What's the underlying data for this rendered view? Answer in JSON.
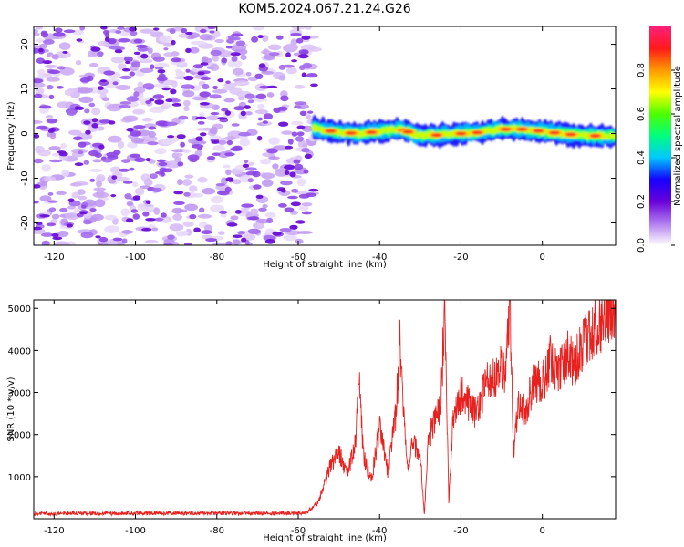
{
  "figure": {
    "title": "KOM5.2024.067.21.24.G26"
  },
  "chart_data": [
    {
      "type": "heatmap",
      "title": "KOM5.2024.067.21.24.G26",
      "xlabel": "Height of straight line (km)",
      "ylabel": "Frequency (Hz)",
      "xlim": [
        -125,
        18
      ],
      "ylim": [
        -25,
        24
      ],
      "xticks": [
        -120,
        -100,
        -80,
        -60,
        -40,
        -20,
        0
      ],
      "yticks": [
        -20,
        -10,
        0,
        10,
        20
      ],
      "colorbar": {
        "label": "Normalized spectral amplitude",
        "range": [
          0,
          1
        ],
        "ticks": [
          0.0,
          0.2,
          0.4,
          0.6,
          0.8
        ],
        "colormap": [
          "#ffffff",
          "#b07cf0",
          "#6a00d8",
          "#1400ff",
          "#00c8ff",
          "#00ff7f",
          "#4dff00",
          "#ffff00",
          "#ff9900",
          "#ff1a1a",
          "#ff1f7a"
        ]
      },
      "regions": [
        {
          "name": "noise",
          "x_range": [
            -125,
            -56
          ],
          "amplitude_range": [
            0.0,
            0.2
          ]
        },
        {
          "name": "signal",
          "x_range": [
            -56,
            18
          ],
          "frequency_hz": 0,
          "bandwidth_hz": 3,
          "peak_amplitude": 1.0
        }
      ],
      "signal_track": {
        "x": [
          -58,
          -55,
          -50,
          -45,
          -40,
          -35,
          -30,
          -25,
          -20,
          -15,
          -10,
          -5,
          0,
          5,
          10,
          15,
          18
        ],
        "y": [
          1.5,
          1.0,
          0.3,
          0.0,
          0.5,
          1.0,
          -0.5,
          -0.3,
          0.0,
          0.3,
          1.0,
          1.0,
          0.5,
          0.0,
          -0.5,
          -0.5,
          -0.5
        ]
      },
      "grid": false
    },
    {
      "type": "line",
      "title": "",
      "xlabel": "Height of straight line (km)",
      "ylabel": "SNR (10 * v/v)",
      "xlim": [
        -125,
        18
      ],
      "ylim": [
        0,
        5200
      ],
      "xticks": [
        -120,
        -100,
        -80,
        -60,
        -40,
        -20,
        0
      ],
      "yticks": [
        1000,
        2000,
        3000,
        4000,
        5000
      ],
      "series": [
        {
          "color": "#e8201e",
          "x": [
            -125,
            -115,
            -105,
            -95,
            -85,
            -75,
            -65,
            -58,
            -55,
            -54,
            -52,
            -50,
            -48,
            -46,
            -45,
            -44,
            -42,
            -40,
            -38,
            -36,
            -35,
            -33,
            -32,
            -30,
            -29,
            -28,
            -26,
            -25,
            -24,
            -23,
            -22,
            -20,
            -18,
            -16,
            -14,
            -12,
            -10,
            -9,
            -8,
            -7,
            -6,
            -4,
            -2,
            0,
            2,
            4,
            6,
            8,
            10,
            12,
            14,
            16,
            18
          ],
          "y": [
            120,
            130,
            125,
            135,
            130,
            125,
            130,
            140,
            400,
            700,
            1300,
            1600,
            1000,
            1800,
            3200,
            1500,
            900,
            2200,
            1100,
            2500,
            4100,
            1100,
            1800,
            1500,
            100,
            1900,
            2400,
            2600,
            5100,
            400,
            2300,
            3000,
            2700,
            2500,
            3200,
            3300,
            3600,
            3400,
            5150,
            1500,
            2800,
            2600,
            3300,
            3200,
            3800,
            3400,
            3900,
            3700,
            4100,
            4400,
            4600,
            4900,
            5000
          ]
        }
      ],
      "grid": false
    }
  ]
}
